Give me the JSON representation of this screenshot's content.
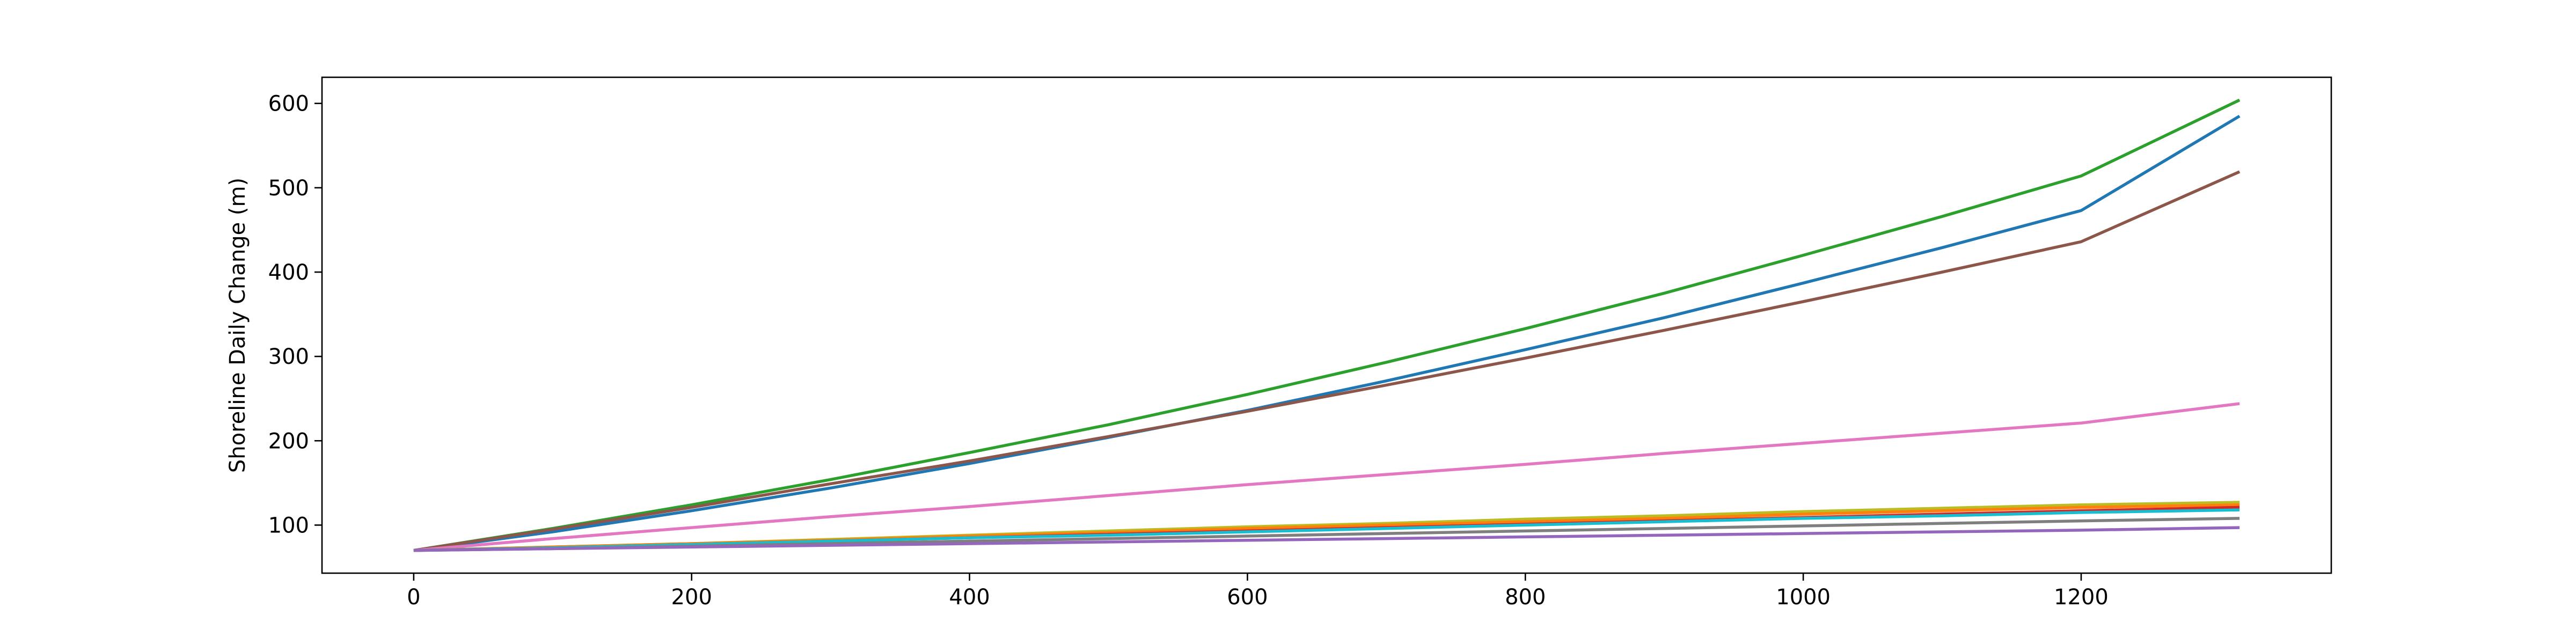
{
  "chart_data": {
    "type": "line",
    "title": "",
    "xlabel": "",
    "ylabel": "Shoreline Daily Change (m)",
    "xlim": [
      -66,
      1380
    ],
    "ylim": [
      43,
      631
    ],
    "xticks": [
      0,
      200,
      400,
      600,
      800,
      1000,
      1200
    ],
    "yticks": [
      100,
      200,
      300,
      400,
      500,
      600
    ],
    "grid": false,
    "legend": "none",
    "x": [
      0,
      100,
      200,
      300,
      400,
      500,
      600,
      700,
      800,
      900,
      1000,
      1100,
      1200,
      1314
    ],
    "series": [
      {
        "color": "#1f77b4",
        "values": [
          70,
          92,
          117,
          144,
          173,
          204,
          236,
          271,
          308,
          346,
          387,
          429,
          473,
          585
        ]
      },
      {
        "color": "#2ca02c",
        "values": [
          70,
          96,
          124,
          154,
          186,
          219,
          255,
          293,
          333,
          375,
          420,
          466,
          514,
          604
        ]
      },
      {
        "color": "#8c564b",
        "values": [
          70,
          95,
          121,
          149,
          176,
          205,
          235,
          266,
          298,
          331,
          365,
          400,
          436,
          519
        ]
      },
      {
        "color": "#e377c2",
        "values": [
          70,
          84,
          97,
          110,
          122,
          135,
          148,
          160,
          172,
          185,
          197,
          209,
          221,
          244
        ]
      },
      {
        "color": "#bcbd22",
        "values": [
          70,
          74,
          78,
          83,
          88,
          93,
          98,
          102,
          107,
          111,
          116,
          120,
          124,
          127
        ]
      },
      {
        "color": "#ff7f0e",
        "values": [
          70,
          74,
          78,
          82,
          87,
          91,
          96,
          100,
          104,
          108,
          113,
          117,
          121,
          124
        ]
      },
      {
        "color": "#d62728",
        "values": [
          70,
          73,
          77,
          81,
          85,
          89,
          93,
          97,
          101,
          105,
          109,
          113,
          117,
          121
        ]
      },
      {
        "color": "#17becf",
        "values": [
          70,
          73,
          77,
          81,
          85,
          88,
          92,
          96,
          100,
          104,
          108,
          111,
          115,
          118
        ]
      },
      {
        "color": "#7f7f7f",
        "values": [
          70,
          72,
          75,
          78,
          81,
          84,
          87,
          90,
          93,
          96,
          99,
          102,
          105,
          108
        ]
      },
      {
        "color": "#9467bd",
        "values": [
          70,
          72,
          74,
          76,
          78,
          80,
          82,
          84,
          86,
          88,
          90,
          92,
          94,
          97
        ]
      }
    ]
  }
}
